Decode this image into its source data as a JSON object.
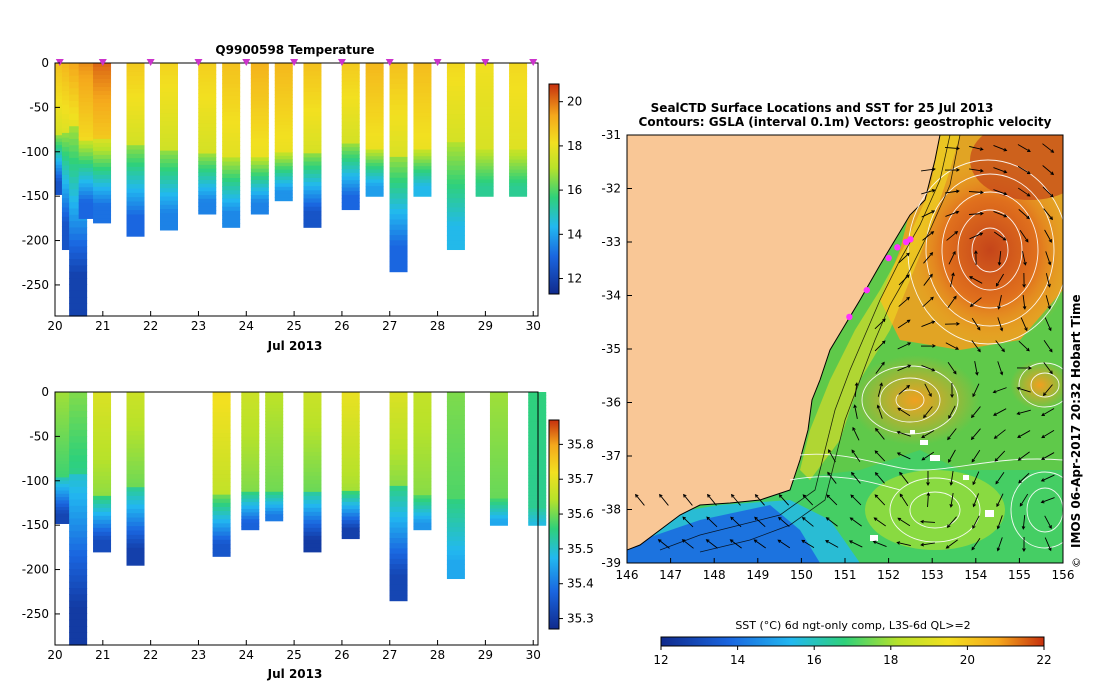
{
  "panels": {
    "temperature": {
      "title": "Q9900598  Temperature",
      "xlabel": "Jul 2013",
      "xticks": [
        "20",
        "21",
        "22",
        "23",
        "24",
        "25",
        "26",
        "27",
        "28",
        "29",
        "30"
      ],
      "yticks": [
        "0",
        "-50",
        "-100",
        "-150",
        "-200",
        "-250"
      ],
      "colorbar_ticks": [
        "12",
        "14",
        "16",
        "18",
        "20"
      ]
    },
    "salinity": {
      "xlabel": "Jul 2013",
      "xticks": [
        "20",
        "21",
        "22",
        "23",
        "24",
        "25",
        "26",
        "27",
        "28",
        "29",
        "30"
      ],
      "yticks": [
        "0",
        "-50",
        "-100",
        "-150",
        "-200",
        "-250"
      ],
      "colorbar_ticks": [
        "35.3",
        "35.4",
        "35.5",
        "35.6",
        "35.7",
        "35.8"
      ]
    },
    "map": {
      "title_line1": "SealCTD Surface Locations and SST for 25 Jul 2013",
      "title_line2": "Contours: GSLA (interval 0.1m) Vectors: geostrophic velocity",
      "xticks": [
        "146",
        "147",
        "148",
        "149",
        "150",
        "151",
        "152",
        "153",
        "154",
        "155",
        "156"
      ],
      "yticks": [
        "-31",
        "-32",
        "-33",
        "-34",
        "-35",
        "-36",
        "-37",
        "-38",
        "-39"
      ],
      "side_label": "IMOS 06-Apr-2017 20:32 Hobart Time",
      "copyright": "©",
      "colorbar_label": "SST (°C) 6d ngt-only comp, L3S-6d QL>=2",
      "colorbar_ticks": [
        "12",
        "14",
        "16",
        "18",
        "20",
        "22"
      ]
    }
  },
  "chart_data": [
    {
      "type": "heatmap",
      "title": "Q9900598  Temperature",
      "xlabel": "Jul 2013",
      "ylabel": "",
      "xlim": [
        20,
        30.1
      ],
      "ylim": [
        -285,
        0
      ],
      "colorbar": {
        "range": [
          11.3,
          20.8
        ],
        "ticks": [
          12,
          14,
          16,
          18,
          20
        ]
      },
      "profiles": [
        {
          "t": 20.1,
          "bottom": -148,
          "top_val": 19.0,
          "thermocline_depth": -80,
          "deep_val": 12.5
        },
        {
          "t": 20.25,
          "bottom": -210,
          "top_val": 19.2,
          "thermocline_depth": -75,
          "deep_val": 12.5
        },
        {
          "t": 20.4,
          "bottom": -285,
          "top_val": 19.5,
          "thermocline_depth": -70,
          "deep_val": 12.0
        },
        {
          "t": 20.6,
          "bottom": -175,
          "top_val": 19.8,
          "thermocline_depth": -85,
          "deep_val": 13.0
        },
        {
          "t": 20.9,
          "bottom": -180,
          "top_val": 20.2,
          "thermocline_depth": -85,
          "deep_val": 13.2
        },
        {
          "t": 21.6,
          "bottom": -195,
          "top_val": 18.8,
          "thermocline_depth": -90,
          "deep_val": 13.0
        },
        {
          "t": 22.3,
          "bottom": -188,
          "top_val": 18.6,
          "thermocline_depth": -95,
          "deep_val": 13.5
        },
        {
          "t": 23.1,
          "bottom": -170,
          "top_val": 18.7,
          "thermocline_depth": -100,
          "deep_val": 13.5
        },
        {
          "t": 23.6,
          "bottom": -185,
          "top_val": 19.0,
          "thermocline_depth": -105,
          "deep_val": 13.6
        },
        {
          "t": 24.2,
          "bottom": -170,
          "top_val": 19.3,
          "thermocline_depth": -105,
          "deep_val": 13.5
        },
        {
          "t": 24.7,
          "bottom": -155,
          "top_val": 19.2,
          "thermocline_depth": -100,
          "deep_val": 13.8
        },
        {
          "t": 25.3,
          "bottom": -185,
          "top_val": 19.0,
          "thermocline_depth": -100,
          "deep_val": 12.5
        },
        {
          "t": 26.1,
          "bottom": -165,
          "top_val": 18.8,
          "thermocline_depth": -90,
          "deep_val": 13.0
        },
        {
          "t": 26.6,
          "bottom": -150,
          "top_val": 19.2,
          "thermocline_depth": -95,
          "deep_val": 14.0
        },
        {
          "t": 27.1,
          "bottom": -235,
          "top_val": 19.0,
          "thermocline_depth": -100,
          "deep_val": 13.0
        },
        {
          "t": 27.6,
          "bottom": -150,
          "top_val": 19.1,
          "thermocline_depth": -95,
          "deep_val": 14.5
        },
        {
          "t": 28.3,
          "bottom": -210,
          "top_val": 18.5,
          "thermocline_depth": -85,
          "deep_val": 14.5
        },
        {
          "t": 28.9,
          "bottom": -150,
          "top_val": 18.3,
          "thermocline_depth": -95,
          "deep_val": 15.5
        },
        {
          "t": 29.6,
          "bottom": -150,
          "top_val": 18.5,
          "thermocline_depth": -95,
          "deep_val": 15.5
        }
      ],
      "profile_markers": [
        20.1,
        21,
        22,
        23,
        24,
        25,
        26,
        27,
        28,
        29,
        30
      ]
    },
    {
      "type": "heatmap",
      "title": "",
      "xlabel": "Jul 2013",
      "ylabel": "",
      "xlim": [
        20,
        30.1
      ],
      "ylim": [
        -285,
        0
      ],
      "colorbar": {
        "range": [
          35.27,
          35.87
        ],
        "ticks": [
          35.3,
          35.4,
          35.5,
          35.6,
          35.7,
          35.8
        ]
      },
      "profiles": [
        {
          "t": 20.1,
          "bottom": -148,
          "top_val": 35.62,
          "halocline_depth": -95,
          "deep_val": 35.32
        },
        {
          "t": 20.4,
          "bottom": -285,
          "top_val": 35.6,
          "halocline_depth": -90,
          "deep_val": 35.3
        },
        {
          "t": 20.9,
          "bottom": -180,
          "top_val": 35.68,
          "halocline_depth": -115,
          "deep_val": 35.33
        },
        {
          "t": 21.6,
          "bottom": -195,
          "top_val": 35.66,
          "halocline_depth": -105,
          "deep_val": 35.31
        },
        {
          "t": 23.4,
          "bottom": -185,
          "top_val": 35.72,
          "halocline_depth": -115,
          "deep_val": 35.35
        },
        {
          "t": 24.0,
          "bottom": -155,
          "top_val": 35.66,
          "halocline_depth": -110,
          "deep_val": 35.37
        },
        {
          "t": 24.5,
          "bottom": -145,
          "top_val": 35.64,
          "halocline_depth": -110,
          "deep_val": 35.4
        },
        {
          "t": 25.3,
          "bottom": -180,
          "top_val": 35.66,
          "halocline_depth": -110,
          "deep_val": 35.3
        },
        {
          "t": 26.1,
          "bottom": -165,
          "top_val": 35.7,
          "halocline_depth": -110,
          "deep_val": 35.31
        },
        {
          "t": 27.1,
          "bottom": -235,
          "top_val": 35.68,
          "halocline_depth": -100,
          "deep_val": 35.32
        },
        {
          "t": 27.6,
          "bottom": -155,
          "top_val": 35.65,
          "halocline_depth": -115,
          "deep_val": 35.43
        },
        {
          "t": 28.3,
          "bottom": -210,
          "top_val": 35.6,
          "halocline_depth": -120,
          "deep_val": 35.45
        },
        {
          "t": 29.2,
          "bottom": -150,
          "top_val": 35.62,
          "halocline_depth": -120,
          "deep_val": 35.45
        },
        {
          "t": 30.0,
          "bottom": -150,
          "top_val": 35.55,
          "halocline_depth": -130,
          "deep_val": 35.48
        }
      ]
    },
    {
      "type": "heatmap",
      "title": "SealCTD Surface Locations and SST for 25 Jul 2013",
      "subtitle": "Contours: GSLA (interval 0.1m) Vectors: geostrophic velocity",
      "xlabel": "",
      "ylabel": "",
      "xlim": [
        146,
        156
      ],
      "ylim": [
        -39,
        -31
      ],
      "colorbar": {
        "label": "SST (°C) 6d ngt-only comp, L3S-6d QL>=2",
        "range": [
          12,
          22
        ],
        "ticks": [
          12,
          14,
          16,
          18,
          20,
          22
        ]
      },
      "warm_core_eddy": {
        "lon": 154.0,
        "lat": -33.3,
        "sst": 21.0
      },
      "seal_ctd_positions": [
        {
          "lon": 151.1,
          "lat": -34.4
        },
        {
          "lon": 151.5,
          "lat": -33.9
        },
        {
          "lon": 152.0,
          "lat": -33.3
        },
        {
          "lon": 152.2,
          "lat": -33.1
        },
        {
          "lon": 152.4,
          "lat": -33.0
        },
        {
          "lon": 152.5,
          "lat": -32.95
        }
      ]
    }
  ]
}
